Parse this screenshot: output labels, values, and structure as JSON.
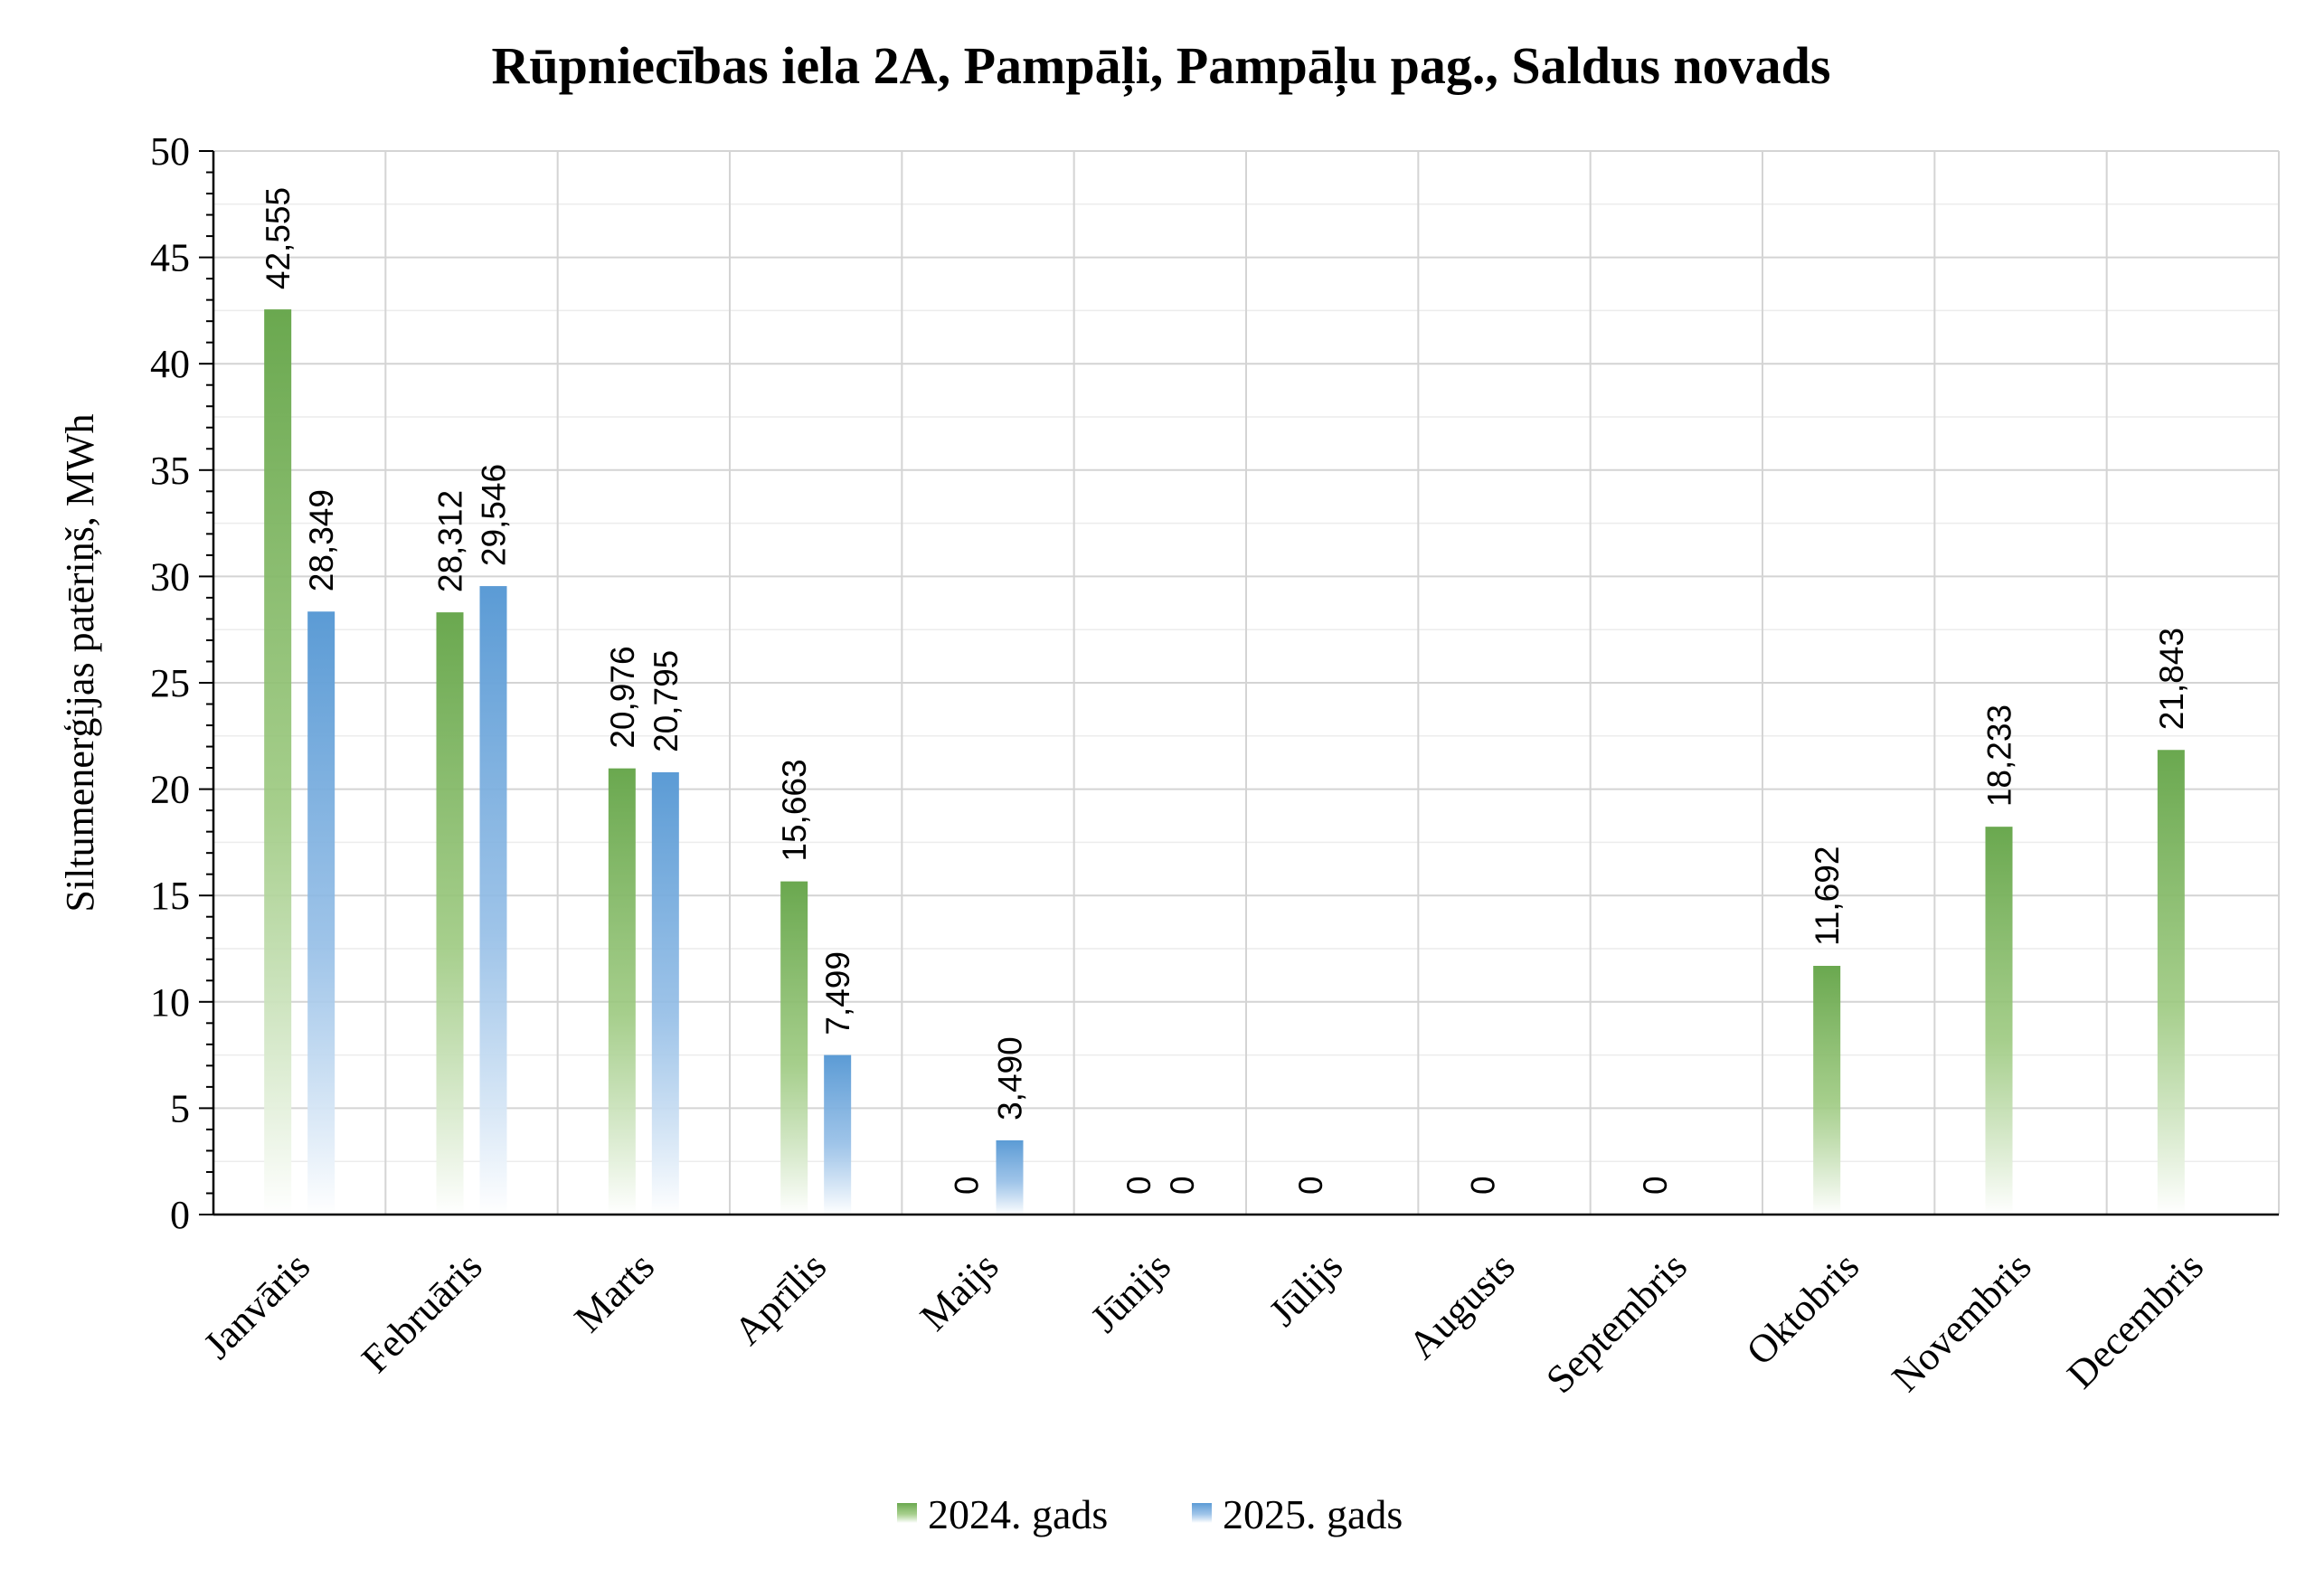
{
  "chart_data": {
    "type": "bar",
    "title": "Rūpniecības iela 2A, Pampāļi, Pampāļu pag., Saldus novads",
    "xlabel": "",
    "ylabel": "Siltumenerģijas patēriņš, MWh",
    "ylim": [
      0,
      50
    ],
    "yticks": [
      0,
      5,
      10,
      15,
      20,
      25,
      30,
      35,
      40,
      45,
      50
    ],
    "grid": true,
    "legend_position": "bottom",
    "categories": [
      "Janvāris",
      "Februāris",
      "Marts",
      "Aprīlis",
      "Maijs",
      "Jūnijs",
      "Jūlijs",
      "Augusts",
      "Septembris",
      "Oktobris",
      "Novembris",
      "Decembris"
    ],
    "series": [
      {
        "name": "2024. gads",
        "color": "#6aa84f",
        "values": [
          42.555,
          28.312,
          20.976,
          15.663,
          0,
          0,
          0,
          0,
          0,
          11.692,
          18.233,
          21.843
        ],
        "labels": [
          "42,555",
          "28,312",
          "20,976",
          "15,663",
          "0",
          "0",
          "0",
          "0",
          "0",
          "11,692",
          "18,233",
          "21,843"
        ]
      },
      {
        "name": "2025. gads",
        "color": "#5b9bd5",
        "values": [
          28.349,
          29.546,
          20.795,
          7.499,
          3.49,
          0,
          null,
          null,
          null,
          null,
          null,
          null
        ],
        "labels": [
          "28,349",
          "29,546",
          "20,795",
          "7,499",
          "3,490",
          "0",
          "",
          "",
          "",
          "",
          "",
          ""
        ]
      }
    ]
  }
}
